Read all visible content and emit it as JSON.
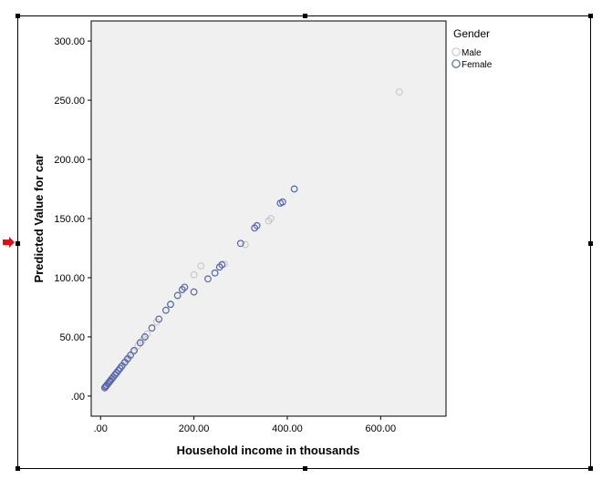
{
  "chart_data": {
    "type": "scatter",
    "title": "",
    "xlabel": "Household income in thousands",
    "ylabel": "Predicted Value for car",
    "xlim": [
      -20,
      740
    ],
    "ylim": [
      -17,
      317
    ],
    "x_ticks": [
      0,
      200,
      400,
      600
    ],
    "x_tick_labels": [
      ".00",
      "200.00",
      "400.00",
      "600.00"
    ],
    "y_ticks": [
      0,
      50,
      100,
      150,
      200,
      250,
      300
    ],
    "y_tick_labels": [
      ".00",
      "50.00",
      "100.00",
      "150.00",
      "200.00",
      "250.00",
      "300.00"
    ],
    "grid": false,
    "legend": {
      "title": "Gender",
      "position": "right"
    },
    "series": [
      {
        "name": "Male",
        "color": "#c9c9c9",
        "points": [
          [
            10,
            7.5
          ],
          [
            12,
            8.5
          ],
          [
            15,
            10
          ],
          [
            18,
            11.5
          ],
          [
            20,
            12.5
          ],
          [
            22,
            13.5
          ],
          [
            25,
            15
          ],
          [
            28,
            16.5
          ],
          [
            30,
            17.5
          ],
          [
            35,
            20
          ],
          [
            40,
            22.5
          ],
          [
            45,
            25
          ],
          [
            50,
            27.5
          ],
          [
            55,
            30
          ],
          [
            60,
            32.5
          ],
          [
            70,
            37.5
          ],
          [
            80,
            42.5
          ],
          [
            90,
            47.5
          ],
          [
            100,
            52.5
          ],
          [
            120,
            62.5
          ],
          [
            150,
            77.5
          ],
          [
            175,
            90
          ],
          [
            200,
            102.5
          ],
          [
            215,
            110
          ],
          [
            265,
            111.5
          ],
          [
            310,
            128
          ],
          [
            360,
            148
          ],
          [
            365,
            150
          ],
          [
            640,
            257
          ]
        ]
      },
      {
        "name": "Female",
        "color": "#5566aa",
        "points": [
          [
            9,
            7
          ],
          [
            11,
            8
          ],
          [
            13,
            9
          ],
          [
            16,
            10.5
          ],
          [
            19,
            12
          ],
          [
            21,
            13
          ],
          [
            24,
            14.5
          ],
          [
            27,
            16
          ],
          [
            31,
            18
          ],
          [
            34,
            19.5
          ],
          [
            38,
            21.5
          ],
          [
            42,
            23.5
          ],
          [
            46,
            25.5
          ],
          [
            52,
            28.5
          ],
          [
            58,
            31.5
          ],
          [
            64,
            34.5
          ],
          [
            72,
            38.5
          ],
          [
            85,
            45
          ],
          [
            95,
            50
          ],
          [
            110,
            57.5
          ],
          [
            125,
            65
          ],
          [
            140,
            72.5
          ],
          [
            150,
            77.5
          ],
          [
            165,
            85
          ],
          [
            175,
            90
          ],
          [
            180,
            92
          ],
          [
            200,
            88
          ],
          [
            230,
            99
          ],
          [
            245,
            104
          ],
          [
            255,
            109
          ],
          [
            260,
            111
          ],
          [
            300,
            129
          ],
          [
            330,
            142
          ],
          [
            335,
            144
          ],
          [
            385,
            163
          ],
          [
            390,
            164
          ],
          [
            415,
            175
          ]
        ]
      }
    ]
  }
}
